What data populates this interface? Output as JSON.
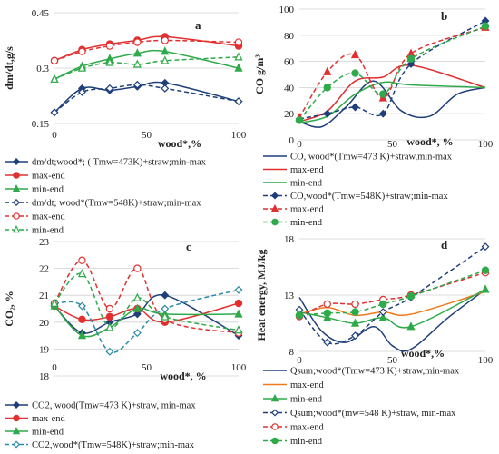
{
  "chart_data": [
    {
      "panel": "a",
      "type": "line",
      "title": "",
      "xlabel": "wood*,%",
      "ylabel": "dm/dt,g/s",
      "xlim": [
        0,
        100
      ],
      "ylim": [
        0.15,
        0.45
      ],
      "x_ticks": [
        0,
        50,
        100
      ],
      "y_ticks": [
        0.15,
        0.3,
        0.45
      ],
      "y_tick_labels": [
        "0.15",
        "0.3",
        "0.45"
      ],
      "series": [
        {
          "name": "dm/dt;wood*; ( Tmw=473K)+straw;min-max",
          "color": "#1f3f7a",
          "dash": "",
          "marker": "diamond",
          "filled": true,
          "x": [
            0,
            15,
            30,
            45,
            60,
            100
          ],
          "y": [
            0.18,
            0.245,
            0.24,
            0.25,
            0.26,
            0.21
          ]
        },
        {
          "name": "max-end",
          "color": "#e03030",
          "dash": "",
          "marker": "circle",
          "filled": true,
          "x": [
            0,
            15,
            30,
            45,
            60,
            100
          ],
          "y": [
            0.32,
            0.35,
            0.365,
            0.375,
            0.385,
            0.36
          ]
        },
        {
          "name": "min-end",
          "color": "#2eaa4a",
          "dash": "",
          "marker": "triangle",
          "filled": true,
          "x": [
            0,
            15,
            30,
            45,
            60,
            100
          ],
          "y": [
            0.27,
            0.305,
            0.325,
            0.34,
            0.345,
            0.3
          ]
        },
        {
          "name": "dm/dt; wood*(Tmw=548K)+straw;min-max",
          "color": "#1f3f7a",
          "dash": "5,3",
          "marker": "diamond",
          "filled": false,
          "x": [
            0,
            15,
            30,
            45,
            60,
            100
          ],
          "y": [
            0.18,
            0.235,
            0.245,
            0.255,
            0.245,
            0.21
          ]
        },
        {
          "name": "max-end",
          "color": "#e03030",
          "dash": "5,3",
          "marker": "circle",
          "filled": false,
          "x": [
            0,
            15,
            30,
            45,
            60,
            100
          ],
          "y": [
            0.32,
            0.345,
            0.36,
            0.37,
            0.375,
            0.37
          ]
        },
        {
          "name": "min-end",
          "color": "#2eaa4a",
          "dash": "5,3",
          "marker": "triangle",
          "filled": false,
          "x": [
            0,
            15,
            30,
            45,
            60,
            100
          ],
          "y": [
            0.27,
            0.3,
            0.315,
            0.31,
            0.32,
            0.33
          ]
        }
      ]
    },
    {
      "panel": "b",
      "type": "line",
      "title": "",
      "xlabel": "wood*, %",
      "ylabel": "CO g/m³",
      "xlim": [
        0,
        100
      ],
      "ylim": [
        0,
        100
      ],
      "x_ticks": [
        0,
        50,
        100
      ],
      "y_ticks": [
        0,
        20,
        40,
        60,
        80,
        100
      ],
      "y_tick_labels": [
        "0",
        "20",
        "40",
        "60",
        "80",
        "100"
      ],
      "series": [
        {
          "name": "CO, wood*(Tmw=473 K)+straw,min-max",
          "color": "#1f3f7a",
          "dash": "",
          "marker": "none",
          "filled": true,
          "x": [
            0,
            12,
            25,
            40,
            55,
            70,
            85,
            100
          ],
          "y": [
            14,
            10,
            25,
            45,
            22,
            18,
            35,
            40
          ]
        },
        {
          "name": "max-end",
          "color": "#e03030",
          "dash": "",
          "marker": "none",
          "filled": true,
          "x": [
            0,
            15,
            30,
            45,
            60,
            100
          ],
          "y": [
            14,
            22,
            45,
            48,
            57,
            40
          ]
        },
        {
          "name": "min-end",
          "color": "#2eaa4a",
          "dash": "",
          "marker": "none",
          "filled": true,
          "x": [
            0,
            15,
            30,
            45,
            60,
            100
          ],
          "y": [
            13,
            18,
            35,
            44,
            42,
            40
          ]
        },
        {
          "name": "CO,wood*(Tmw=548K)+straw;min-max",
          "color": "#1f3f7a",
          "dash": "5,3",
          "marker": "diamond",
          "filled": true,
          "x": [
            0,
            15,
            30,
            45,
            60,
            100
          ],
          "y": [
            16,
            20,
            25,
            20,
            58,
            91
          ]
        },
        {
          "name": "max-end",
          "color": "#e03030",
          "dash": "5,3",
          "marker": "triangle",
          "filled": true,
          "x": [
            0,
            15,
            30,
            45,
            60,
            100
          ],
          "y": [
            17,
            52,
            65,
            32,
            66,
            86
          ]
        },
        {
          "name": "min-end",
          "color": "#2eaa4a",
          "dash": "5,3",
          "marker": "circle",
          "filled": true,
          "x": [
            0,
            15,
            30,
            45,
            60,
            100
          ],
          "y": [
            15,
            40,
            51,
            35,
            62,
            87
          ]
        }
      ]
    },
    {
      "panel": "c",
      "type": "line",
      "title": "",
      "xlabel": "wood*, %",
      "ylabel": "CO₂, %",
      "xlim": [
        0,
        100
      ],
      "ylim": [
        18,
        23
      ],
      "x_ticks": [
        0,
        50,
        100
      ],
      "y_ticks": [
        18,
        19,
        20,
        21,
        22,
        23
      ],
      "y_tick_labels": [
        "18",
        "19",
        "20",
        "21",
        "22",
        "23"
      ],
      "series": [
        {
          "name": "CO2, wood(Tmw=473 K)+straw, min-max",
          "color": "#1f3f7a",
          "dash": "",
          "marker": "diamond",
          "filled": true,
          "x": [
            0,
            15,
            30,
            45,
            60,
            100
          ],
          "y": [
            20.6,
            19.6,
            20.0,
            20.3,
            21.0,
            19.5
          ]
        },
        {
          "name": "max-end",
          "color": "#e03030",
          "dash": "",
          "marker": "circle",
          "filled": true,
          "x": [
            0,
            15,
            30,
            45,
            60,
            100
          ],
          "y": [
            20.6,
            20.1,
            20.2,
            20.5,
            20.0,
            20.7
          ]
        },
        {
          "name": "min-end",
          "color": "#2eaa4a",
          "dash": "",
          "marker": "triangle",
          "filled": true,
          "x": [
            0,
            15,
            30,
            45,
            60,
            100
          ],
          "y": [
            20.6,
            19.5,
            19.8,
            20.5,
            20.3,
            20.3
          ]
        },
        {
          "name": "CO2,wood*(Tmw=548K)+straw;min-max",
          "color": "#2a8aa8",
          "dash": "5,3",
          "marker": "diamond",
          "filled": false,
          "x": [
            0,
            15,
            30,
            45,
            60,
            100
          ],
          "y": [
            20.7,
            20.6,
            18.9,
            19.6,
            20.5,
            21.2
          ]
        },
        {
          "name": "max-end",
          "color": "#e03030",
          "dash": "5,3",
          "marker": "circle",
          "filled": false,
          "x": [
            0,
            15,
            30,
            45,
            60,
            100
          ],
          "y": [
            20.7,
            22.3,
            20.5,
            22.0,
            20.1,
            19.6
          ]
        },
        {
          "name": "min-end",
          "color": "#2eaa4a",
          "dash": "5,3",
          "marker": "triangle",
          "filled": false,
          "x": [
            0,
            15,
            30,
            45,
            60,
            100
          ],
          "y": [
            20.7,
            21.8,
            19.8,
            20.9,
            20.2,
            19.7
          ]
        }
      ]
    },
    {
      "panel": "d",
      "type": "line",
      "title": "",
      "xlabel": "wood*,%",
      "ylabel": "Heat energy, MJ/kg",
      "xlim": [
        0,
        100
      ],
      "ylim": [
        8,
        18
      ],
      "x_ticks": [
        0,
        50,
        100
      ],
      "y_ticks": [
        8,
        13,
        18
      ],
      "y_tick_labels": [
        "8",
        "13",
        "18"
      ],
      "series": [
        {
          "name": "Qsum;wood*(Tmw=473 K)+straw,min-max",
          "color": "#1f3f7a",
          "dash": "",
          "marker": "none",
          "filled": true,
          "x": [
            0,
            12,
            25,
            40,
            50,
            60,
            80,
            100
          ],
          "y": [
            12.8,
            9.8,
            8.8,
            10.2,
            8.5,
            8.2,
            11.0,
            13.5
          ]
        },
        {
          "name": "max-end",
          "color": "#f07a1a",
          "dash": "",
          "marker": "none",
          "filled": true,
          "x": [
            0,
            15,
            30,
            45,
            60,
            100
          ],
          "y": [
            11.3,
            11.9,
            11.2,
            11.5,
            11.3,
            13.3
          ]
        },
        {
          "name": "min-end",
          "color": "#2eaa4a",
          "dash": "",
          "marker": "triangle",
          "filled": true,
          "x": [
            0,
            15,
            30,
            45,
            60,
            100
          ],
          "y": [
            11.5,
            11.0,
            10.5,
            11.0,
            10.2,
            13.5
          ]
        },
        {
          "name": "Qsum;wood*(mw=548 K)+straw, min-max",
          "color": "#1f3f7a",
          "dash": "5,3",
          "marker": "diamond",
          "filled": false,
          "x": [
            0,
            15,
            30,
            45,
            60,
            100
          ],
          "y": [
            11.7,
            8.8,
            9.4,
            11.5,
            12.8,
            17.3
          ]
        },
        {
          "name": "max-end",
          "color": "#e03030",
          "dash": "5,3",
          "marker": "circle",
          "filled": false,
          "x": [
            0,
            15,
            30,
            45,
            60,
            100
          ],
          "y": [
            11.1,
            12.2,
            12.2,
            12.6,
            13.0,
            15.0
          ]
        },
        {
          "name": "min-end",
          "color": "#2eaa4a",
          "dash": "5,3",
          "marker": "circle",
          "filled": true,
          "x": [
            0,
            15,
            30,
            45,
            60,
            100
          ],
          "y": [
            11.2,
            11.4,
            11.5,
            12.2,
            12.9,
            15.2
          ]
        }
      ]
    }
  ]
}
